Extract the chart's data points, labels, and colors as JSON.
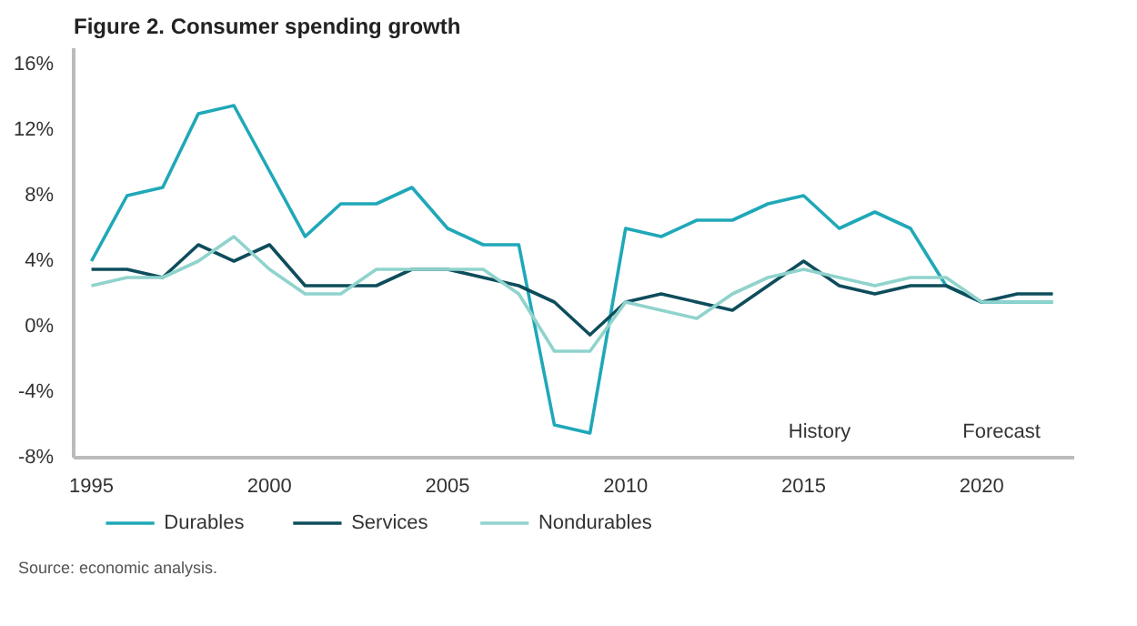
{
  "chart_data": {
    "type": "line",
    "title": "Figure 2. Consumer spending growth",
    "x": [
      1995,
      1996,
      1997,
      1998,
      1999,
      2000,
      2001,
      2002,
      2003,
      2004,
      2005,
      2006,
      2007,
      2008,
      2009,
      2010,
      2011,
      2012,
      2013,
      2014,
      2015,
      2016,
      2017,
      2018,
      2019,
      2020,
      2021,
      2022
    ],
    "series": [
      {
        "name": "Durables",
        "color": "#1fa8b8",
        "values": [
          4,
          8,
          8.5,
          13,
          13.5,
          9.5,
          5.5,
          7.5,
          7.5,
          8.5,
          6,
          5,
          5,
          -6,
          -6.5,
          6,
          5.5,
          6.5,
          6.5,
          7.5,
          8,
          6,
          7,
          6,
          2.5,
          1.5,
          1.5,
          1.5
        ]
      },
      {
        "name": "Services",
        "color": "#0e4d5c",
        "values": [
          3.5,
          3.5,
          3,
          5,
          4,
          5,
          2.5,
          2.5,
          2.5,
          3.5,
          3.5,
          3,
          2.5,
          1.5,
          -0.5,
          1.5,
          2,
          1.5,
          1,
          2.5,
          4,
          2.5,
          2,
          2.5,
          2.5,
          1.5,
          2,
          2
        ]
      },
      {
        "name": "Nondurables",
        "color": "#8fd3cc",
        "values": [
          2.5,
          3,
          3,
          4,
          5.5,
          3.5,
          2,
          2,
          3.5,
          3.5,
          3.5,
          3.5,
          2,
          -1.5,
          -1.5,
          1.5,
          1,
          0.5,
          2,
          3,
          3.5,
          3,
          2.5,
          3,
          3,
          1.5,
          1.5,
          1.5
        ]
      }
    ],
    "xlim": [
      1994.5,
      2022.6
    ],
    "ylim": [
      -8,
      17
    ],
    "xticks": [
      1995,
      2000,
      2005,
      2010,
      2015,
      2020
    ],
    "yticks": [
      {
        "value": -8,
        "label": "-8%"
      },
      {
        "value": -4,
        "label": "-4%"
      },
      {
        "value": 0,
        "label": "0%"
      },
      {
        "value": 4,
        "label": "4%"
      },
      {
        "value": 8,
        "label": "8%"
      },
      {
        "value": 12,
        "label": "12%"
      },
      {
        "value": 16,
        "label": "16%"
      }
    ],
    "annotations": [
      "History",
      "Forecast",
      "Source: economic analysis."
    ],
    "grid": false,
    "legend": "bottom",
    "line_style": "solid",
    "marker": "none"
  }
}
